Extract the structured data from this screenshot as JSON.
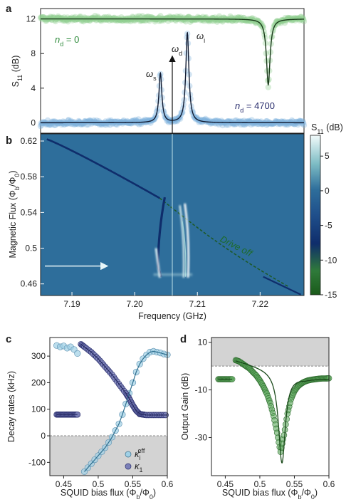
{
  "chart_data": [
    {
      "panel": "a",
      "type": "line",
      "ylabel": "S11 (dB)",
      "xlim": [
        7.185,
        7.227
      ],
      "ylim": [
        -1.2,
        13.2
      ],
      "yticks": [
        0,
        4,
        8,
        12
      ],
      "grid": false,
      "series": [
        {
          "name": "nd = 0",
          "label_main": "n",
          "label_sub": "d",
          "label_rest": " = 0",
          "color": "#2e8b3b",
          "description": "flat at ~12 dB with sharp dip near 7.2213 GHz",
          "baseline": 12,
          "dip_center": 7.2213,
          "dip_depth": 7.6,
          "dip_width": 0.00035
        },
        {
          "name": "nd = 4700",
          "label_main": "n",
          "label_sub": "d",
          "label_rest": " = 4700",
          "color": "#2a2e6e",
          "description": "flat at ~0 dB with peaks at omega_s and omega_i",
          "baseline": 0,
          "peaks": [
            {
              "center": 7.2041,
              "height": 5.7,
              "width": 0.00028
            },
            {
              "center": 7.2084,
              "height": 10.4,
              "width": 0.0003
            }
          ]
        }
      ],
      "annotations": {
        "omega_s": {
          "main": "ω",
          "sub": "s"
        },
        "omega_i": {
          "main": "ω",
          "sub": "i"
        },
        "omega_d": {
          "main": "ω",
          "sub": "d"
        },
        "drive_x": 7.206
      }
    },
    {
      "panel": "b",
      "type": "heatmap",
      "xlabel": "Frequency (GHz)",
      "ylabel": "Magnetic Flux (Φb/Φ0)",
      "xlim": [
        7.185,
        7.227
      ],
      "ylim": [
        0.447,
        0.628
      ],
      "xticks": [
        7.19,
        7.2,
        7.21,
        7.22
      ],
      "yticks": [
        0.46,
        0.5,
        0.54,
        0.58,
        0.62
      ],
      "colorbar": {
        "label": "S11 (dB)",
        "range": [
          -15,
          8
        ],
        "ticks": [
          5,
          0,
          -5,
          -10,
          -15
        ]
      },
      "annotation_text": "Drive off",
      "arrow_flux": 0.48,
      "drive_x": 7.206
    },
    {
      "panel": "c",
      "type": "scatter",
      "xlabel": "SQUID bias flux (Φb/Φ0)",
      "ylabel": "Decay rates (kHz)",
      "xlim": [
        0.43,
        0.6
      ],
      "ylim": [
        -150,
        370
      ],
      "xticks": [
        0.45,
        0.5,
        0.55,
        0.6
      ],
      "yticks": [
        -100,
        0,
        100,
        200,
        300
      ],
      "legend": [
        {
          "main": "κ",
          "sub": "i",
          "sup": "eff",
          "color": "#9fd0e6"
        },
        {
          "main": "κ",
          "sub": "1",
          "sup": "",
          "color": "#7b80b8"
        }
      ],
      "series": [
        {
          "name": "kappa_i_eff",
          "color": "#9fd0e6",
          "points": [
            [
              0.44,
              340
            ],
            [
              0.445,
              335
            ],
            [
              0.45,
              338
            ],
            [
              0.455,
              330
            ],
            [
              0.46,
              335
            ],
            [
              0.465,
              325
            ],
            [
              0.47,
              310
            ],
            [
              0.48,
              -135
            ],
            [
              0.485,
              -120
            ],
            [
              0.49,
              -105
            ],
            [
              0.495,
              -90
            ],
            [
              0.5,
              -75
            ],
            [
              0.505,
              -60
            ],
            [
              0.51,
              -45
            ],
            [
              0.515,
              -25
            ],
            [
              0.52,
              -5
            ],
            [
              0.525,
              20
            ],
            [
              0.53,
              45
            ],
            [
              0.535,
              80
            ],
            [
              0.54,
              120
            ],
            [
              0.545,
              160
            ],
            [
              0.55,
              200
            ],
            [
              0.555,
              240
            ],
            [
              0.56,
              270
            ],
            [
              0.565,
              290
            ],
            [
              0.57,
              305
            ],
            [
              0.575,
              315
            ],
            [
              0.58,
              318
            ],
            [
              0.585,
              315
            ],
            [
              0.59,
              312
            ],
            [
              0.595,
              308
            ],
            [
              0.6,
              305
            ]
          ]
        },
        {
          "name": "kappa_1",
          "color": "#7b80b8",
          "points": [
            [
              0.44,
              80
            ],
            [
              0.445,
              80
            ],
            [
              0.45,
              80
            ],
            [
              0.455,
              80
            ],
            [
              0.46,
              80
            ],
            [
              0.465,
              80
            ],
            [
              0.47,
              80
            ],
            [
              0.475,
              345
            ],
            [
              0.48,
              335
            ],
            [
              0.49,
              315
            ],
            [
              0.5,
              290
            ],
            [
              0.51,
              260
            ],
            [
              0.52,
              230
            ],
            [
              0.53,
              195
            ],
            [
              0.54,
              160
            ],
            [
              0.545,
              140
            ],
            [
              0.55,
              115
            ],
            [
              0.555,
              95
            ],
            [
              0.56,
              82
            ],
            [
              0.565,
              80
            ],
            [
              0.57,
              78
            ],
            [
              0.58,
              78
            ],
            [
              0.59,
              78
            ],
            [
              0.6,
              78
            ]
          ]
        }
      ]
    },
    {
      "panel": "d",
      "type": "scatter",
      "xlabel": "SQUID bias flux (Φb/Φ0)",
      "ylabel": "Output Gain (dB)",
      "xlim": [
        0.43,
        0.6
      ],
      "ylim": [
        -46,
        12
      ],
      "xticks": [
        0.45,
        0.5,
        0.55,
        0.6
      ],
      "yticks": [
        -30,
        -10,
        10
      ],
      "series": [
        {
          "name": "gain",
          "color": "#2e8b3b",
          "points": [
            [
              0.44,
              -5.5
            ],
            [
              0.445,
              -5.5
            ],
            [
              0.45,
              -5.5
            ],
            [
              0.455,
              -5.5
            ],
            [
              0.46,
              -5.5
            ],
            [
              0.465,
              2.5
            ],
            [
              0.47,
              2
            ],
            [
              0.475,
              1
            ],
            [
              0.48,
              0
            ],
            [
              0.485,
              -1
            ],
            [
              0.49,
              -2.5
            ],
            [
              0.495,
              -4
            ],
            [
              0.5,
              -6
            ],
            [
              0.505,
              -8.5
            ],
            [
              0.51,
              -11.5
            ],
            [
              0.515,
              -15.5
            ],
            [
              0.52,
              -21
            ],
            [
              0.525,
              -28
            ],
            [
              0.53,
              -36
            ],
            [
              0.535,
              -29
            ],
            [
              0.54,
              -20
            ],
            [
              0.545,
              -14
            ],
            [
              0.55,
              -10.5
            ],
            [
              0.555,
              -8.5
            ],
            [
              0.56,
              -7.3
            ],
            [
              0.565,
              -6.5
            ],
            [
              0.57,
              -6
            ],
            [
              0.575,
              -5.7
            ],
            [
              0.58,
              -5.5
            ],
            [
              0.585,
              -5.3
            ],
            [
              0.59,
              -5.2
            ],
            [
              0.595,
              -5.2
            ],
            [
              0.6,
              -5.1
            ]
          ]
        }
      ]
    }
  ],
  "panel_letters": {
    "a": "a",
    "b": "b",
    "c": "c",
    "d": "d"
  },
  "labels": {
    "s11_main": "S",
    "s11_sub": "11",
    "s11_rest": " (dB)",
    "flux_main": "Magnetic Flux (Φ",
    "flux_sub1": "b",
    "flux_mid": "/Φ",
    "flux_sub2": "0",
    "flux_end": ")",
    "squid_main": "SQUID bias flux (Φ",
    "squid_sub1": "b",
    "squid_mid": "/Φ",
    "squid_sub2": "0",
    "squid_end": ")",
    "freq": "Frequency (GHz)",
    "decay": "Decay rates (kHz)",
    "gain": "Output Gain (dB)"
  },
  "colors": {
    "heat_bg": "#2e6e9b",
    "heat_dark": "#0f2d6b",
    "heat_light": "#eaf5f5",
    "green": "#2e8b3b",
    "navy": "#2a2e6e",
    "gray_band": "#d3d3d3"
  }
}
